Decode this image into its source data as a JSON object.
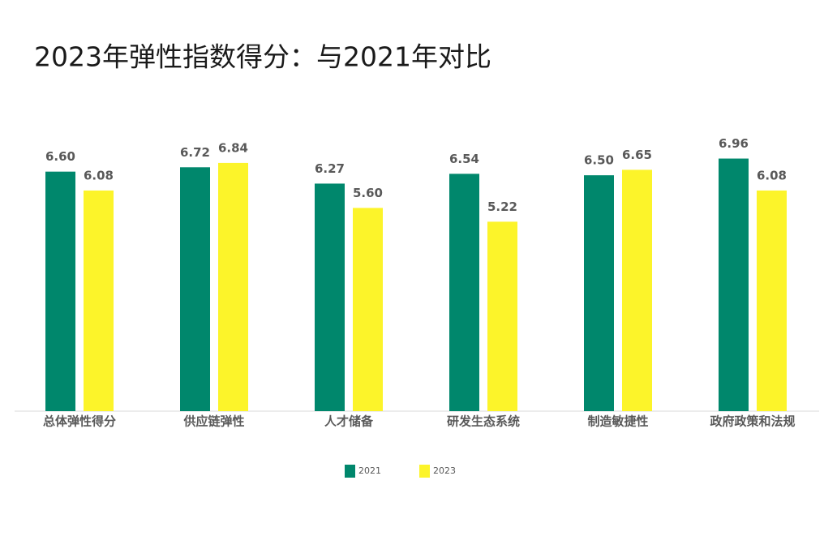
{
  "chart_data": {
    "type": "bar",
    "title": "2023年弹性指数得分：与2021年对比",
    "categories": [
      "总体弹性得分",
      "供应链弹性",
      "人才储备",
      "研发生态系统",
      "制造敏捷性",
      "政府政策和法规"
    ],
    "series": [
      {
        "name": "2021",
        "color": "#00876c",
        "values": [
          6.6,
          6.72,
          6.27,
          6.54,
          6.5,
          6.96
        ],
        "value_labels": [
          "6.60",
          "6.72",
          "6.27",
          "6.54",
          "6.50",
          "6.96"
        ]
      },
      {
        "name": "2023",
        "color": "#fcf42a",
        "values": [
          6.08,
          6.84,
          5.6,
          5.22,
          6.65,
          6.08
        ],
        "value_labels": [
          "6.08",
          "6.84",
          "5.60",
          "5.22",
          "6.65",
          "6.08"
        ]
      }
    ],
    "ylim": [
      0,
      8
    ],
    "legend": "bottom"
  }
}
